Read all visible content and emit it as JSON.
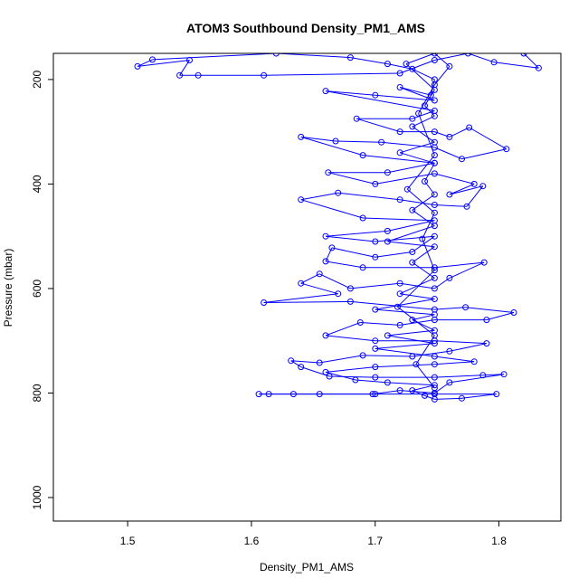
{
  "chart_data": {
    "type": "scatter",
    "title": "ATOM3 Southbound Density_PM1_AMS",
    "xlabel": "Density_PM1_AMS",
    "ylabel": "Pressure (mbar)",
    "xlim": [
      1.44,
      1.85
    ],
    "ylim": [
      1045,
      150
    ],
    "y_reversed": true,
    "x_ticks": [
      1.5,
      1.6,
      1.7,
      1.8
    ],
    "y_ticks": [
      200,
      400,
      600,
      800,
      1000
    ],
    "grid": false,
    "legend": "none",
    "series_color": "#0000ff",
    "marker": "open-circle",
    "connected": true,
    "series": [
      {
        "points": [
          [
            1.82,
            150
          ],
          [
            1.832,
            178
          ],
          [
            1.796,
            167
          ],
          [
            1.775,
            150
          ],
          [
            1.748,
            163
          ],
          [
            1.72,
            188
          ],
          [
            1.61,
            192
          ],
          [
            1.557,
            192
          ],
          [
            1.542,
            192
          ],
          [
            1.55,
            163
          ],
          [
            1.508,
            175
          ],
          [
            1.52,
            162
          ],
          [
            1.62,
            150
          ],
          [
            1.68,
            158
          ],
          [
            1.71,
            170
          ],
          [
            1.73,
            180
          ],
          [
            1.748,
            200
          ],
          [
            1.745,
            230
          ],
          [
            1.72,
            215
          ],
          [
            1.748,
            240
          ],
          [
            1.7,
            230
          ],
          [
            1.66,
            222
          ],
          [
            1.748,
            260
          ],
          [
            1.73,
            275
          ],
          [
            1.685,
            275
          ],
          [
            1.72,
            300
          ],
          [
            1.748,
            300
          ],
          [
            1.76,
            310
          ],
          [
            1.776,
            292
          ],
          [
            1.806,
            333
          ],
          [
            1.77,
            352
          ],
          [
            1.748,
            330
          ],
          [
            1.705,
            320
          ],
          [
            1.668,
            318
          ],
          [
            1.64,
            310
          ],
          [
            1.69,
            345
          ],
          [
            1.748,
            360
          ],
          [
            1.71,
            378
          ],
          [
            1.662,
            378
          ],
          [
            1.7,
            400
          ],
          [
            1.748,
            380
          ],
          [
            1.78,
            400
          ],
          [
            1.76,
            420
          ],
          [
            1.787,
            404
          ],
          [
            1.774,
            443
          ],
          [
            1.748,
            440
          ],
          [
            1.72,
            430
          ],
          [
            1.67,
            417
          ],
          [
            1.64,
            430
          ],
          [
            1.69,
            465
          ],
          [
            1.748,
            470
          ],
          [
            1.71,
            490
          ],
          [
            1.66,
            500
          ],
          [
            1.7,
            510
          ],
          [
            1.748,
            500
          ],
          [
            1.73,
            530
          ],
          [
            1.7,
            540
          ],
          [
            1.665,
            522
          ],
          [
            1.66,
            548
          ],
          [
            1.69,
            560
          ],
          [
            1.748,
            560
          ],
          [
            1.788,
            550
          ],
          [
            1.76,
            580
          ],
          [
            1.748,
            600
          ],
          [
            1.72,
            590
          ],
          [
            1.68,
            600
          ],
          [
            1.655,
            572
          ],
          [
            1.64,
            590
          ],
          [
            1.67,
            610
          ],
          [
            1.61,
            627
          ],
          [
            1.68,
            625
          ],
          [
            1.748,
            640
          ],
          [
            1.773,
            636
          ],
          [
            1.812,
            646
          ],
          [
            1.79,
            660
          ],
          [
            1.748,
            660
          ],
          [
            1.72,
            670
          ],
          [
            1.688,
            665
          ],
          [
            1.66,
            690
          ],
          [
            1.7,
            700
          ],
          [
            1.748,
            700
          ],
          [
            1.79,
            705
          ],
          [
            1.76,
            720
          ],
          [
            1.73,
            730
          ],
          [
            1.69,
            728
          ],
          [
            1.655,
            742
          ],
          [
            1.632,
            738
          ],
          [
            1.64,
            750
          ],
          [
            1.663,
            768
          ],
          [
            1.7,
            770
          ],
          [
            1.748,
            770
          ],
          [
            1.787,
            766
          ],
          [
            1.804,
            764
          ],
          [
            1.76,
            780
          ],
          [
            1.748,
            800
          ],
          [
            1.72,
            795
          ],
          [
            1.698,
            802
          ],
          [
            1.655,
            802
          ],
          [
            1.634,
            802
          ],
          [
            1.606,
            802
          ],
          [
            1.614,
            802
          ],
          [
            1.7,
            802
          ],
          [
            1.748,
            802
          ],
          [
            1.798,
            802
          ],
          [
            1.77,
            810
          ],
          [
            1.748,
            812
          ],
          [
            1.74,
            805
          ],
          [
            1.73,
            795
          ],
          [
            1.748,
            785
          ],
          [
            1.71,
            780
          ],
          [
            1.684,
            775
          ],
          [
            1.66,
            760
          ],
          [
            1.7,
            750
          ],
          [
            1.748,
            745
          ],
          [
            1.78,
            740
          ],
          [
            1.748,
            730
          ],
          [
            1.7,
            715
          ],
          [
            1.748,
            705
          ],
          [
            1.71,
            690
          ],
          [
            1.748,
            680
          ],
          [
            1.73,
            660
          ],
          [
            1.748,
            650
          ],
          [
            1.7,
            640
          ],
          [
            1.748,
            620
          ],
          [
            1.72,
            610
          ],
          [
            1.748,
            580
          ],
          [
            1.73,
            550
          ],
          [
            1.748,
            520
          ],
          [
            1.71,
            510
          ],
          [
            1.748,
            480
          ],
          [
            1.73,
            450
          ],
          [
            1.748,
            420
          ],
          [
            1.74,
            395
          ],
          [
            1.748,
            360
          ],
          [
            1.72,
            340
          ],
          [
            1.748,
            320
          ],
          [
            1.73,
            290
          ],
          [
            1.748,
            270
          ],
          [
            1.74,
            250
          ],
          [
            1.748,
            220
          ],
          [
            1.725,
            170
          ],
          [
            1.748,
            150
          ],
          [
            1.76,
            175
          ],
          [
            1.748,
            210
          ],
          [
            1.735,
            265
          ],
          [
            1.748,
            345
          ],
          [
            1.726,
            410
          ],
          [
            1.748,
            455
          ],
          [
            1.738,
            505
          ],
          [
            1.748,
            565
          ],
          [
            1.718,
            635
          ],
          [
            1.748,
            690
          ],
          [
            1.733,
            745
          ],
          [
            1.748,
            790
          ]
        ]
      }
    ]
  }
}
